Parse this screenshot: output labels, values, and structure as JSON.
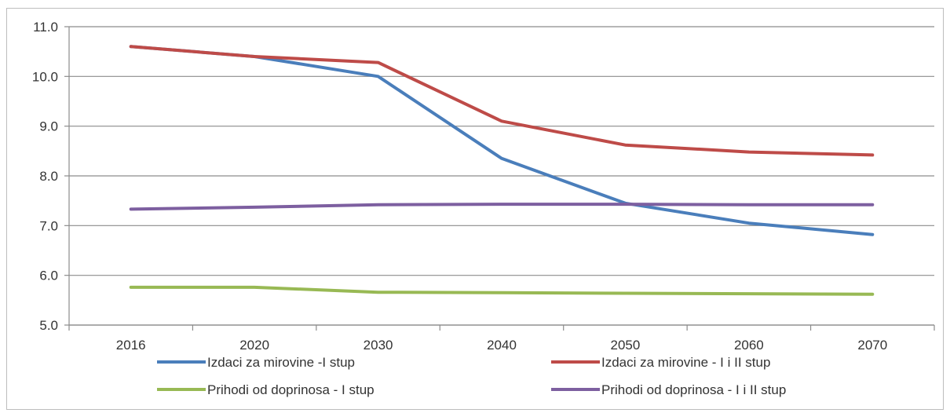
{
  "chart_data": {
    "type": "line",
    "title": "",
    "xlabel": "",
    "ylabel": "",
    "categories": [
      "2016",
      "2020",
      "2030",
      "2040",
      "2050",
      "2060",
      "2070"
    ],
    "ylim": [
      5.0,
      11.0
    ],
    "yticks": [
      "5.0",
      "6.0",
      "7.0",
      "8.0",
      "9.0",
      "10.0",
      "11.0"
    ],
    "grid": "horizontal",
    "legend_position": "bottom",
    "series": [
      {
        "name": "Izdaci za mirovine -I stup",
        "color": "#4a7ebb",
        "values": [
          10.6,
          10.4,
          10.0,
          8.35,
          7.45,
          7.05,
          6.82
        ]
      },
      {
        "name": "Izdaci za mirovine - I i II stup",
        "color": "#be4b48",
        "values": [
          10.6,
          10.4,
          10.28,
          9.1,
          8.62,
          8.48,
          8.42
        ]
      },
      {
        "name": "Prihodi od doprinosa - I stup",
        "color": "#98b954",
        "values": [
          5.76,
          5.76,
          5.66,
          5.65,
          5.64,
          5.63,
          5.62
        ]
      },
      {
        "name": "Prihodi od doprinosa - I i II stup",
        "color": "#7d5fa0",
        "values": [
          7.33,
          7.37,
          7.42,
          7.43,
          7.43,
          7.42,
          7.42
        ]
      }
    ]
  }
}
